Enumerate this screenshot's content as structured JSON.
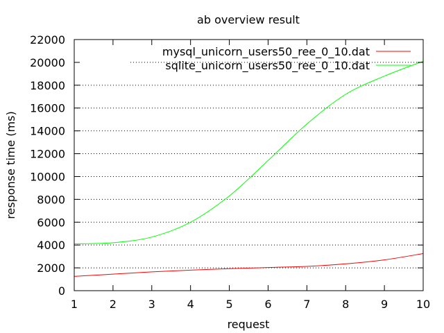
{
  "chart_data": {
    "type": "line",
    "title": "ab overview result",
    "xlabel": "request",
    "ylabel": "response time (ms)",
    "xlim": [
      1,
      10
    ],
    "ylim": [
      0,
      22000
    ],
    "x_ticks": [
      1,
      2,
      3,
      4,
      5,
      6,
      7,
      8,
      9,
      10
    ],
    "y_ticks": [
      0,
      2000,
      4000,
      6000,
      8000,
      10000,
      12000,
      14000,
      16000,
      18000,
      20000,
      22000
    ],
    "grid": "horizontal dotted",
    "legend_position": "top-right",
    "series": [
      {
        "name": "mysql_unicorn_users50_ree_0_10.dat",
        "color": "#ff0000",
        "x": [
          1,
          2,
          3,
          4,
          5,
          6,
          7,
          8,
          9,
          10
        ],
        "values": [
          1250,
          1450,
          1650,
          1800,
          1930,
          2030,
          2130,
          2350,
          2700,
          3250
        ]
      },
      {
        "name": "sqlite_unicorn_users50_ree_0_10.dat",
        "color": "#00ff00",
        "x": [
          1,
          2,
          3,
          4,
          5,
          6,
          7,
          8,
          9,
          10
        ],
        "values": [
          4100,
          4200,
          4700,
          6000,
          8300,
          11400,
          14600,
          17200,
          18800,
          20100
        ]
      }
    ]
  }
}
